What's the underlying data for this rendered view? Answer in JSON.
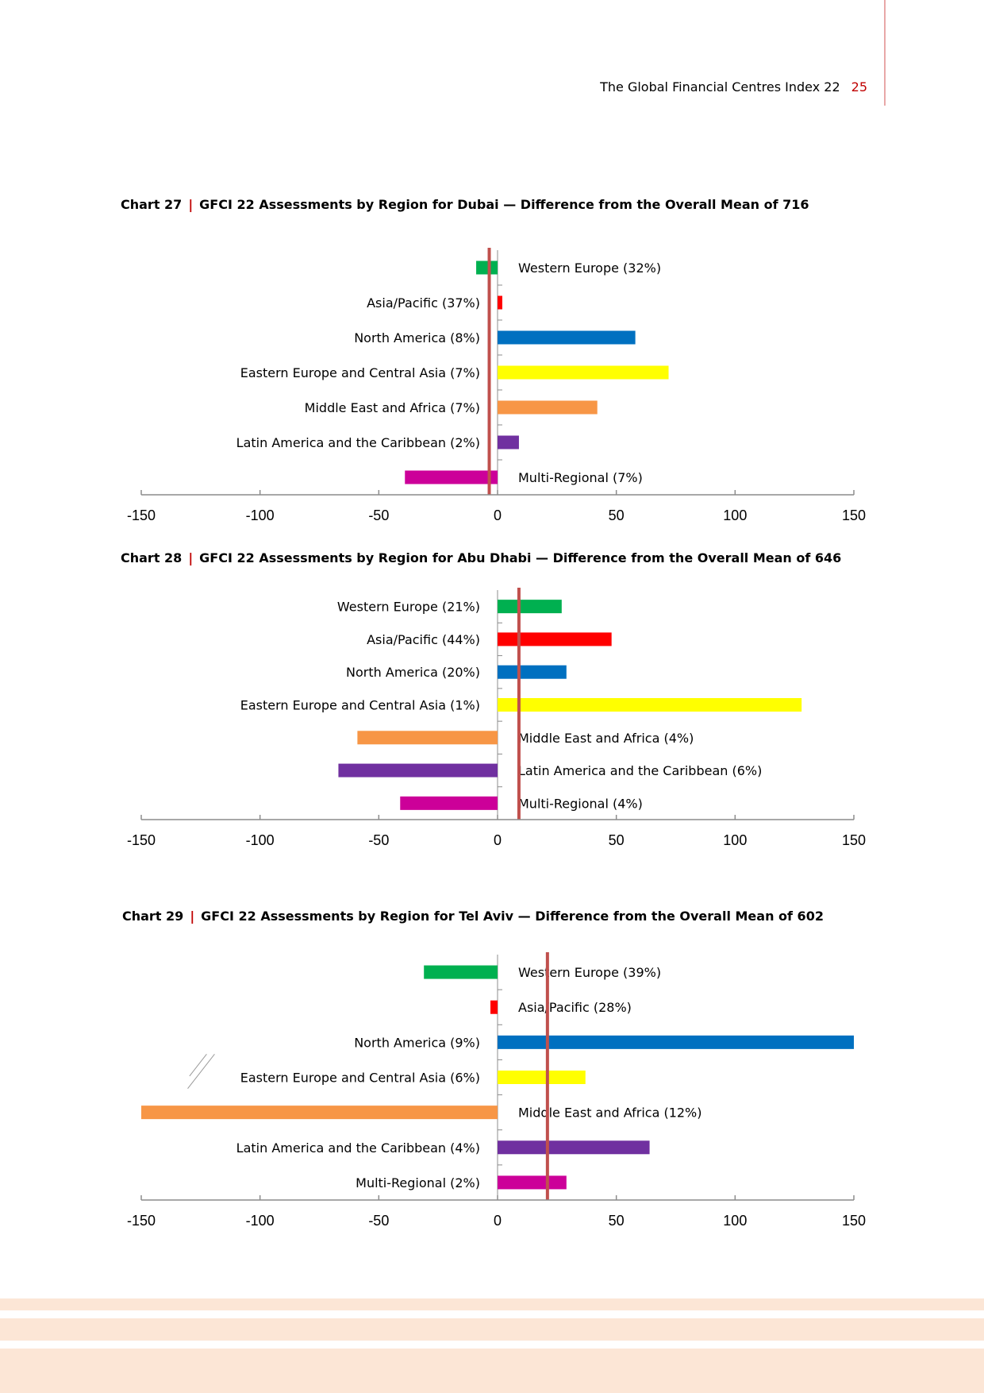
{
  "header": {
    "title": "The Global Financial Centres Index 22",
    "page_number": "25"
  },
  "colors": {
    "western_europe": "#00b050",
    "asia_pacific": "#ff0000",
    "north_america": "#0070c0",
    "eastern_europe": "#ffff00",
    "middle_east": "#f79646",
    "latin_america": "#7030a0",
    "multi_regional": "#cc0099",
    "mean_line": "#c0504d",
    "accent": "#c00000",
    "stripe": "#fce6d6"
  },
  "chart_data": [
    {
      "type": "bar",
      "orientation": "horizontal",
      "number": "Chart 27",
      "separator": "|",
      "title": "GFCI 22 Assessments by Region for Dubai — Difference from the Overall Mean of 716",
      "xlim": [
        -150,
        150
      ],
      "xticks": [
        "-150",
        "-100",
        "-50",
        "0",
        "50",
        "100",
        "150"
      ],
      "mean_line": -3.5,
      "categories": [
        "Western Europe (32%)",
        "Asia/Pacific (37%)",
        "North America (8%)",
        "Eastern Europe and Central Asia (7%)",
        "Middle East and Africa (7%)",
        "Latin America and the Caribbean (2%)",
        "Multi-Regional (7%)"
      ],
      "values": [
        -9,
        2,
        58,
        72,
        42,
        9,
        -39
      ],
      "label_side": [
        "right",
        "left",
        "left",
        "left",
        "left",
        "left",
        "right"
      ]
    },
    {
      "type": "bar",
      "orientation": "horizontal",
      "number": "Chart 28",
      "separator": "|",
      "title": "GFCI 22 Assessments by Region for Abu Dhabi — Difference from the Overall Mean of 646",
      "xlim": [
        -150,
        150
      ],
      "xticks": [
        "-150",
        "-100",
        "-50",
        "0",
        "50",
        "100",
        "150"
      ],
      "mean_line": 9,
      "categories": [
        "Western Europe (21%)",
        "Asia/Pacific (44%)",
        "North America (20%)",
        "Eastern Europe and Central Asia (1%)",
        "Middle East and Africa (4%)",
        "Latin America and the Caribbean (6%)",
        "Multi-Regional (4%)"
      ],
      "values": [
        27,
        48,
        29,
        128,
        -59,
        -67,
        -41
      ],
      "label_side": [
        "left",
        "left",
        "left",
        "left",
        "right",
        "right",
        "right"
      ]
    },
    {
      "type": "bar",
      "orientation": "horizontal",
      "number": "Chart 29",
      "separator": "|",
      "title": "GFCI 22 Assessments by Region for Tel Aviv — Difference from the Overall Mean of 602",
      "xlim": [
        -150,
        150
      ],
      "xticks": [
        "-150",
        "-100",
        "-50",
        "0",
        "50",
        "100",
        "150"
      ],
      "mean_line": 21,
      "categories": [
        "Western Europe (39%)",
        "Asia/Pacific (28%)",
        "North America (9%)",
        "Eastern Europe and Central Asia (6%)",
        "Middle East and Africa (12%)",
        "Latin America and the Caribbean (4%)",
        "Multi-Regional (2%)"
      ],
      "values": [
        -31,
        -3,
        150,
        37,
        -150,
        64,
        29
      ],
      "label_side": [
        "right",
        "right",
        "left",
        "left",
        "right",
        "left",
        "left"
      ]
    }
  ]
}
